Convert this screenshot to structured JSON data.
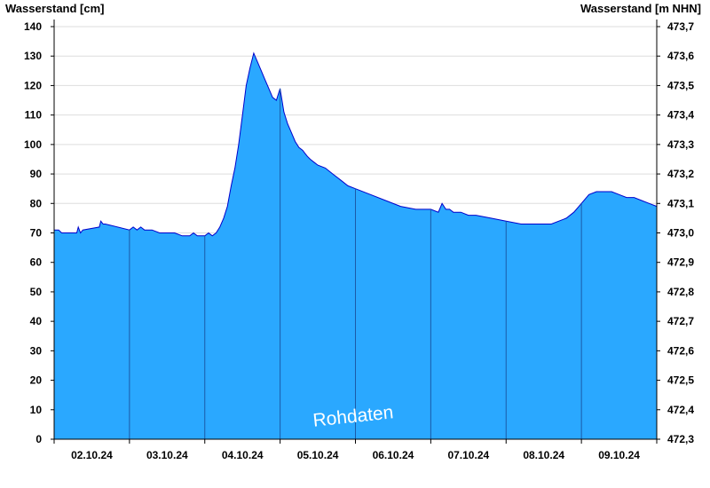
{
  "chart_data": {
    "type": "area",
    "ylabel_left": "Wasserstand [cm]",
    "ylabel_right": "Wasserstand [m NHN]",
    "watermark": "Rohdaten",
    "ylim_left": [
      0,
      140
    ],
    "ylim_right": [
      472.3,
      473.7
    ],
    "xlim_days": [
      0,
      8
    ],
    "yticks_left": [
      "0",
      "10",
      "20",
      "30",
      "40",
      "50",
      "60",
      "70",
      "80",
      "90",
      "100",
      "110",
      "120",
      "130",
      "140"
    ],
    "yticks_right": [
      "472,3",
      "472,4",
      "472,5",
      "472,6",
      "472,7",
      "472,8",
      "472,9",
      "473,0",
      "473,1",
      "473,2",
      "473,3",
      "473,4",
      "473,5",
      "473,6",
      "473,7"
    ],
    "xticks": [
      "02.10.24",
      "03.10.24",
      "04.10.24",
      "05.10.24",
      "06.10.24",
      "07.10.24",
      "08.10.24",
      "09.10.24"
    ],
    "grid": true,
    "fill_color": "#2aa8ff",
    "line_color": "#0000cc",
    "series": [
      {
        "x": [
          0,
          0.06,
          0.1,
          0.3,
          0.32,
          0.35,
          0.38,
          0.6,
          0.62,
          0.65,
          0.68,
          1.0,
          1.05,
          1.1,
          1.15,
          1.2,
          1.25,
          1.3,
          1.4,
          1.5,
          1.6,
          1.7,
          1.8,
          1.85,
          1.9,
          1.95,
          2.0,
          2.05,
          2.1,
          2.15,
          2.2,
          2.25,
          2.3,
          2.35,
          2.4,
          2.45,
          2.5,
          2.55,
          2.6,
          2.65,
          2.7,
          2.75,
          2.8,
          2.85,
          2.9,
          2.95,
          3.0,
          3.05,
          3.1,
          3.15,
          3.2,
          3.25,
          3.3,
          3.33,
          3.36,
          3.4,
          3.45,
          3.5,
          3.6,
          3.7,
          3.8,
          3.9,
          4.0,
          4.2,
          4.4,
          4.6,
          4.8,
          5.0,
          5.1,
          5.15,
          5.2,
          5.25,
          5.3,
          5.4,
          5.5,
          5.6,
          5.8,
          6.0,
          6.2,
          6.4,
          6.6,
          6.7,
          6.8,
          6.9,
          7.0,
          7.1,
          7.2,
          7.3,
          7.4,
          7.5,
          7.6,
          7.7,
          7.8,
          7.9,
          8.0
        ],
        "y": [
          71,
          71,
          70,
          70,
          72,
          70,
          71,
          72,
          74,
          73,
          73,
          71,
          72,
          71,
          72,
          71,
          71,
          71,
          70,
          70,
          70,
          69,
          69,
          70,
          69,
          69,
          69,
          70,
          69,
          70,
          72,
          75,
          79,
          86,
          92,
          100,
          110,
          120,
          126,
          131,
          128,
          125,
          122,
          119,
          116,
          115,
          119,
          111,
          107,
          104,
          101,
          99,
          98,
          97,
          96,
          95,
          94,
          93,
          92,
          90,
          88,
          86,
          85,
          83,
          81,
          79,
          78,
          78,
          77,
          80,
          78,
          78,
          77,
          77,
          76,
          76,
          75,
          74,
          73,
          73,
          73,
          74,
          75,
          77,
          80,
          83,
          84,
          84,
          84,
          83,
          82,
          82,
          81,
          80,
          79
        ]
      }
    ]
  }
}
